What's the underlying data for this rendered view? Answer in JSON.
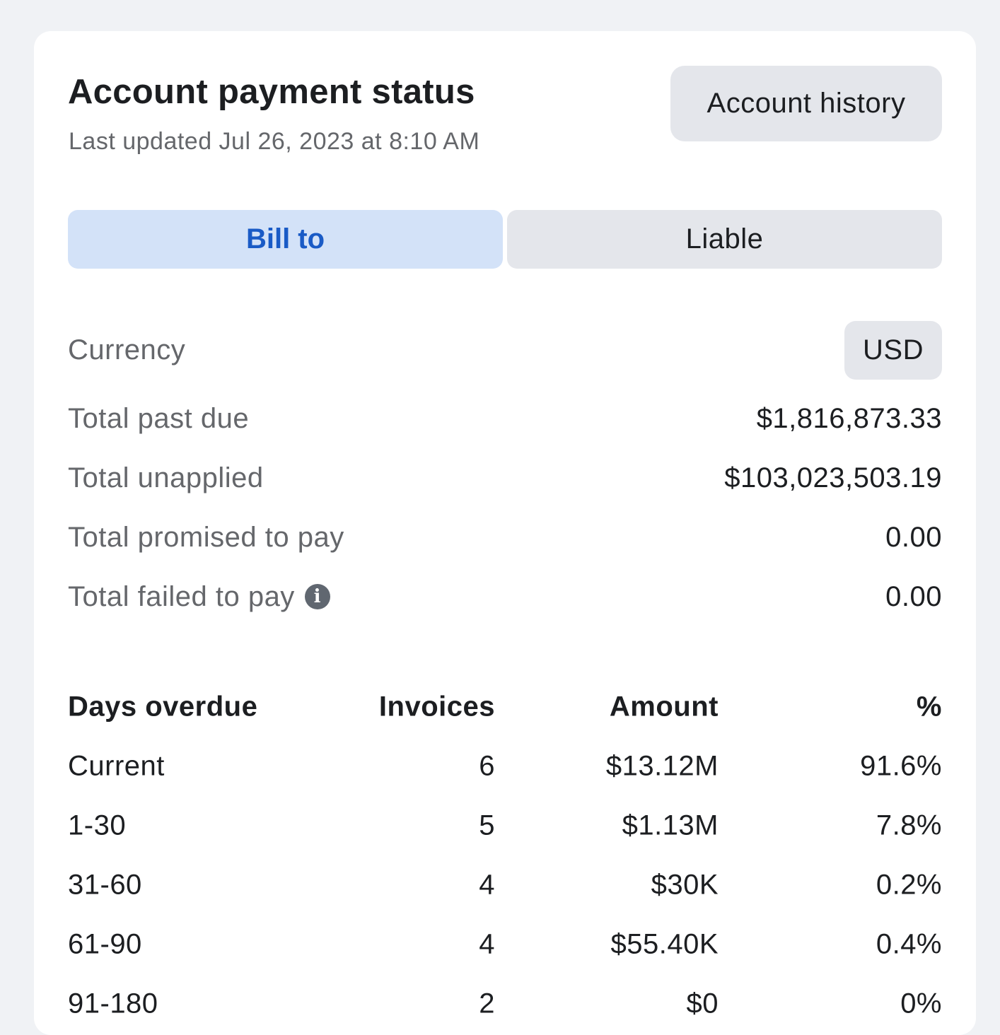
{
  "header": {
    "title": "Account payment status",
    "last_updated": "Last updated Jul 26, 2023 at 8:10 AM",
    "history_button": "Account history"
  },
  "tabs": [
    {
      "label": "Bill to",
      "active": true
    },
    {
      "label": "Liable",
      "active": false
    }
  ],
  "summary": {
    "currency": {
      "label": "Currency",
      "value": "USD"
    },
    "rows": [
      {
        "label": "Total past due",
        "value": "$1,816,873.33"
      },
      {
        "label": "Total unapplied",
        "value": "$103,023,503.19"
      },
      {
        "label": "Total promised to pay",
        "value": "0.00"
      },
      {
        "label": "Total failed to pay",
        "value": "0.00",
        "icon": "info-icon"
      }
    ]
  },
  "table": {
    "headers": [
      "Days overdue",
      "Invoices",
      "Amount",
      "%"
    ],
    "rows": [
      [
        "Current",
        "6",
        "$13.12M",
        "91.6%"
      ],
      [
        "1-30",
        "5",
        "$1.13M",
        "7.8%"
      ],
      [
        "31-60",
        "4",
        "$30K",
        "0.2%"
      ],
      [
        "61-90",
        "4",
        "$55.40K",
        "0.4%"
      ],
      [
        "91-180",
        "2",
        "$0",
        "0%"
      ]
    ]
  },
  "colors": {
    "accent": "#1a5bc6",
    "active_tab_bg": "#d3e2f8",
    "button_bg": "#e4e6eb",
    "background": "#f0f2f5"
  }
}
